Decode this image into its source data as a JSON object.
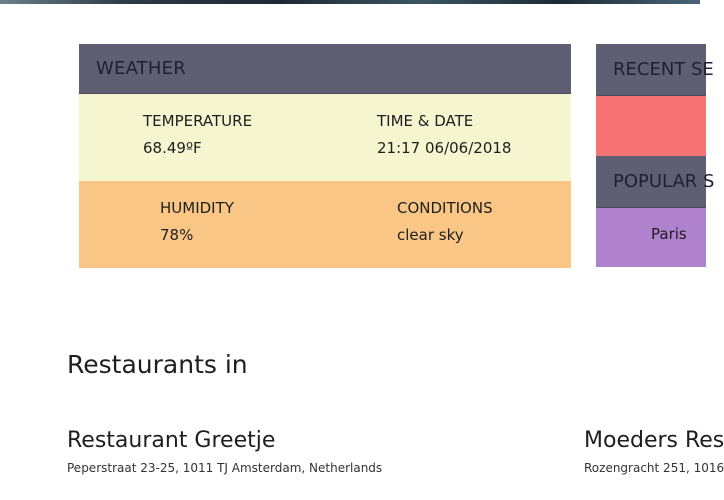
{
  "weather": {
    "title": "WEATHER",
    "temperature_label": "TEMPERATURE",
    "temperature_value": "68.49ºF",
    "time_label": "TIME & DATE",
    "time_value": "21:17 06/06/2018",
    "humidity_label": "HUMIDITY",
    "humidity_value": "78%",
    "conditions_label": "CONDITIONS",
    "conditions_value": "clear sky"
  },
  "sidebar": {
    "recent_title": "RECENT SE",
    "popular_title": "POPULAR S",
    "popular_item": "Paris"
  },
  "restaurants": {
    "section_title": "Restaurants in",
    "items": [
      {
        "name": "Restaurant Greetje",
        "address": "Peperstraat 23-25, 1011 TJ Amsterdam, Netherlands"
      },
      {
        "name": "Moeders Res",
        "address": "Rozengracht 251, 1016"
      }
    ]
  },
  "colors": {
    "header": "#5e5f72",
    "row1": "#f5f5d0",
    "row2": "#f9c685",
    "recent": "#f77474",
    "popular": "#b081cc"
  }
}
